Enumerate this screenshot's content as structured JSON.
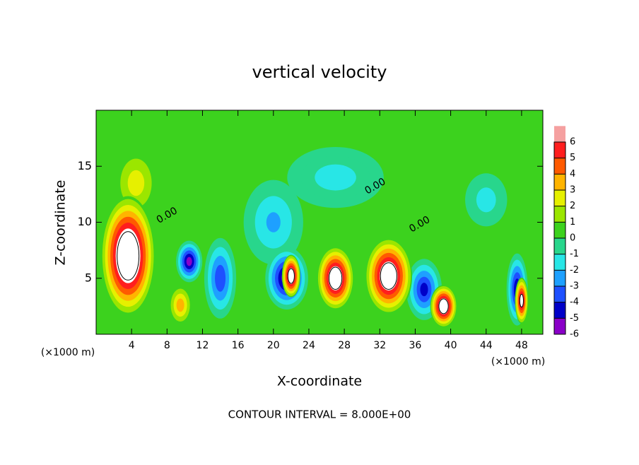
{
  "chart_data": {
    "type": "contour",
    "title": "vertical velocity",
    "x_label": "X-coordinate",
    "y_label": "Z-coordinate",
    "x_unit": "(×1000 m)",
    "y_unit": "(×1000 m)",
    "footer": "CONTOUR INTERVAL = 8.000E+00",
    "xlim": [
      0,
      50.4
    ],
    "ylim": [
      0,
      20
    ],
    "xticks": [
      4,
      8,
      12,
      16,
      20,
      24,
      28,
      32,
      36,
      40,
      44,
      48
    ],
    "yticks": [
      5,
      10,
      15
    ],
    "background_value": 0.5,
    "colorbar": {
      "levels": [
        -6,
        -5,
        -4,
        -3,
        -2,
        -1,
        0,
        1,
        2,
        3,
        4,
        5,
        6
      ],
      "colors": [
        "#8a00c8",
        "#0000c8",
        "#1e50ff",
        "#1ea0ff",
        "#28e6e6",
        "#28d68c",
        "#3cd21e",
        "#9be600",
        "#e6f000",
        "#ffb400",
        "#ff5a00",
        "#ff1e1e",
        "#f5a0a0"
      ],
      "above_color": "#ffffff"
    },
    "blobs": [
      {
        "x": 27,
        "z": 14,
        "rx": 7,
        "rz": 3.5,
        "value": -1.3
      },
      {
        "x": 20,
        "z": 10,
        "rx": 4,
        "rz": 4.5,
        "value": -2
      },
      {
        "x": 44,
        "z": 12,
        "rx": 3,
        "rz": 3,
        "value": -1.4
      },
      {
        "x": 4.5,
        "z": 13.5,
        "rx": 2.6,
        "rz": 3.2,
        "value": 3
      },
      {
        "x": 3.6,
        "z": 7,
        "rx": 3.2,
        "rz": 5.6,
        "value": 9
      },
      {
        "x": 9.5,
        "z": 2.6,
        "rx": 1.4,
        "rz": 1.9,
        "value": 4
      },
      {
        "x": 10.5,
        "z": 6.5,
        "rx": 1.6,
        "rz": 2,
        "value": -5
      },
      {
        "x": 14,
        "z": 5,
        "rx": 2,
        "rz": 4,
        "value": -3.5
      },
      {
        "x": 21.5,
        "z": 5,
        "rx": 2.6,
        "rz": 3,
        "value": -5.2
      },
      {
        "x": 22,
        "z": 5.2,
        "rx": 1.1,
        "rz": 2,
        "value": 8
      },
      {
        "x": 27,
        "z": 5,
        "rx": 2.2,
        "rz": 3,
        "value": 8
      },
      {
        "x": 37,
        "z": 4,
        "rx": 2.2,
        "rz": 3,
        "value": -4
      },
      {
        "x": 33,
        "z": 5.2,
        "rx": 2.8,
        "rz": 3.6,
        "value": 8
      },
      {
        "x": 39.2,
        "z": 2.5,
        "rx": 1.6,
        "rz": 2,
        "value": 8
      },
      {
        "x": 47.5,
        "z": 4,
        "rx": 1.3,
        "rz": 3.5,
        "value": -4.5
      },
      {
        "x": 48,
        "z": 3,
        "rx": 0.8,
        "rz": 2.2,
        "value": 7
      }
    ],
    "contour_labels": [
      {
        "x": 8,
        "z": 10.6,
        "text": "0.00"
      },
      {
        "x": 31.5,
        "z": 13.2,
        "text": "0.00"
      },
      {
        "x": 36.5,
        "z": 9.8,
        "text": "0.00"
      }
    ]
  }
}
